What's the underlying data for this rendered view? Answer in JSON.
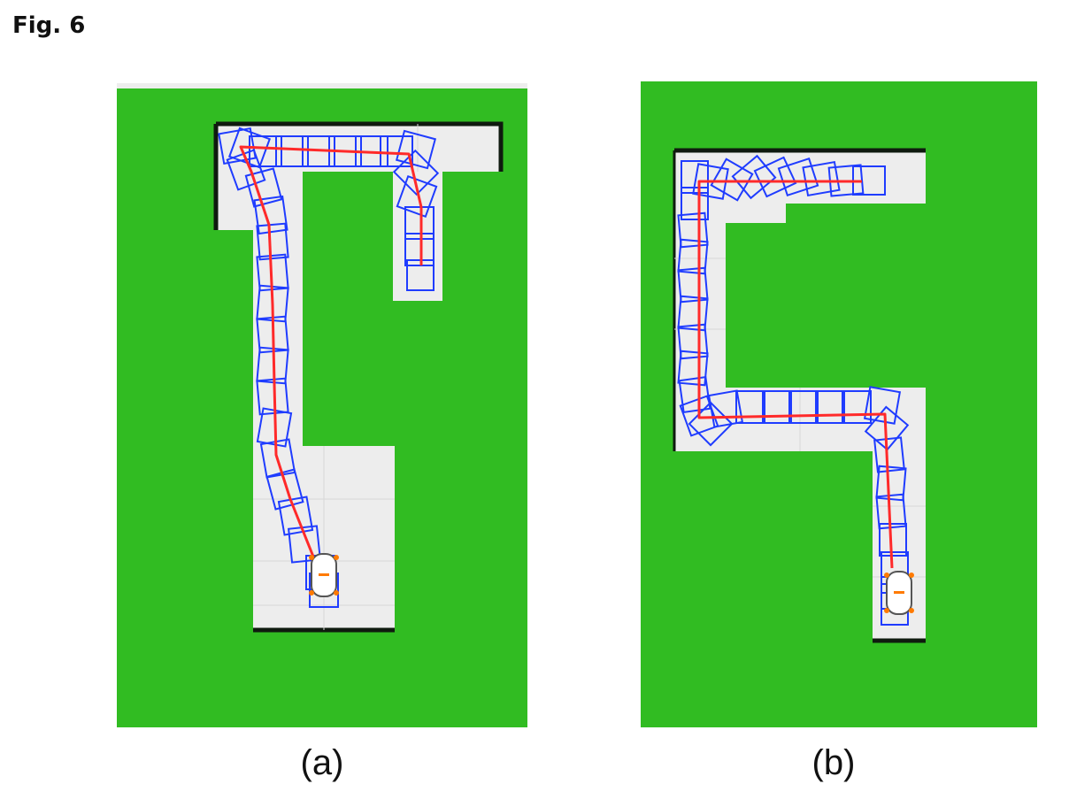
{
  "figure": {
    "title": "Fig. 6"
  },
  "panels": [
    {
      "id": "a",
      "caption": "(a)"
    },
    {
      "id": "b",
      "caption": "(b)"
    }
  ],
  "colors": {
    "obstacle": "#31bc22",
    "free_space": "#ededed",
    "wall": "#0f1a0f",
    "footprint": "#1f3cff",
    "path": "#ff2a2a",
    "vehicle_body": "#ffffff",
    "vehicle_marker": "#ff7a00"
  }
}
